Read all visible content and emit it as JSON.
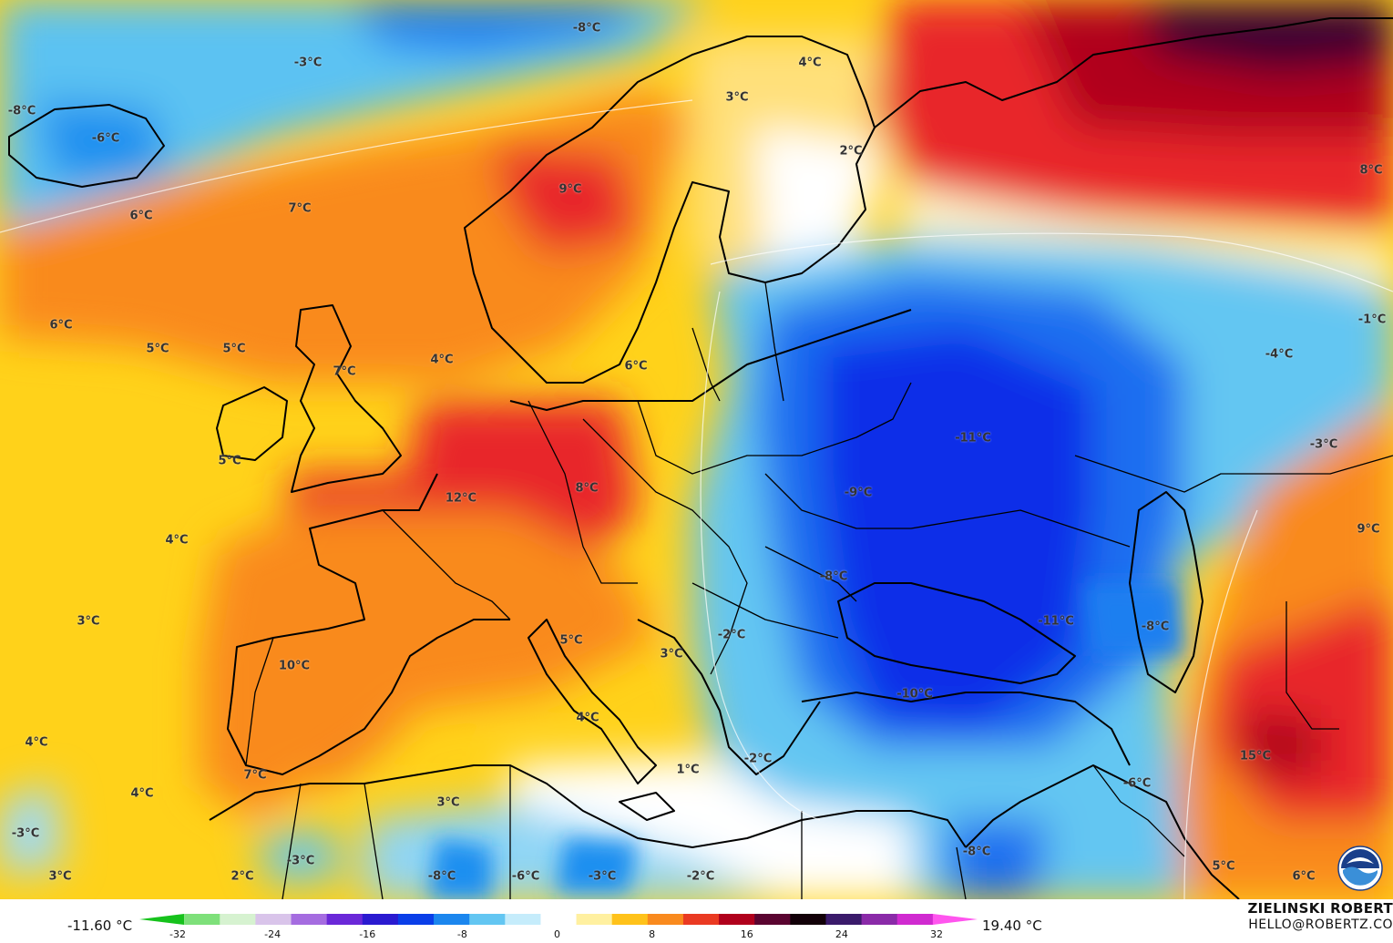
{
  "map": {
    "colors": {
      "deep_red": "#b0001c",
      "red": "#e8262a",
      "orange": "#f98a1e",
      "yellow": "#ffd21a",
      "pale": "#fff4c8",
      "white": "#ffffff",
      "light_blue": "#7fd3f5",
      "blue": "#1f8ff0",
      "deep_blue": "#0a2de8",
      "dark_purple": "#3a0533"
    },
    "labels": [
      {
        "name": "temp-label-n-atlantic-north",
        "text": "-8°C"
      },
      {
        "name": "temp-label-norwegian-sea",
        "text": "-3°C"
      },
      {
        "name": "temp-label-kola",
        "text": "4°C"
      },
      {
        "name": "temp-label-iceland-west",
        "text": "-8°C"
      },
      {
        "name": "temp-label-iceland",
        "text": "-6°C"
      },
      {
        "name": "temp-label-lapland",
        "text": "3°C"
      },
      {
        "name": "temp-label-finland",
        "text": "2°C"
      },
      {
        "name": "temp-label-ural-north",
        "text": "8°C"
      },
      {
        "name": "temp-label-norway",
        "text": "9°C"
      },
      {
        "name": "temp-label-atlantic-north",
        "text": "6°C"
      },
      {
        "name": "temp-label-faroe",
        "text": "7°C"
      },
      {
        "name": "temp-label-atlantic-west",
        "text": "6°C"
      },
      {
        "name": "temp-label-atlantic-mid",
        "text": "5°C"
      },
      {
        "name": "temp-label-scotland-west",
        "text": "5°C"
      },
      {
        "name": "temp-label-england",
        "text": "7°C"
      },
      {
        "name": "temp-label-north-sea",
        "text": "4°C"
      },
      {
        "name": "temp-label-baltic",
        "text": "6°C"
      },
      {
        "name": "temp-label-kazakh-north",
        "text": "-1°C"
      },
      {
        "name": "temp-label-kazakh",
        "text": "-4°C"
      },
      {
        "name": "temp-label-ireland",
        "text": "5°C"
      },
      {
        "name": "temp-label-russia",
        "text": "-11°C"
      },
      {
        "name": "temp-label-caspian-north",
        "text": "-3°C"
      },
      {
        "name": "temp-label-belgium",
        "text": "12°C"
      },
      {
        "name": "temp-label-germany",
        "text": "8°C"
      },
      {
        "name": "temp-label-ukraine",
        "text": "-9°C"
      },
      {
        "name": "temp-label-iran-north",
        "text": "9°C"
      },
      {
        "name": "temp-label-bay-of-biscay",
        "text": "4°C"
      },
      {
        "name": "temp-label-romania",
        "text": "-8°C"
      },
      {
        "name": "temp-label-atlantic-sw",
        "text": "3°C"
      },
      {
        "name": "temp-label-black-sea-east",
        "text": "-11°C"
      },
      {
        "name": "temp-label-caspian",
        "text": "-8°C"
      },
      {
        "name": "temp-label-balkans",
        "text": "-2°C"
      },
      {
        "name": "temp-label-italy-north",
        "text": "5°C"
      },
      {
        "name": "temp-label-spain",
        "text": "10°C"
      },
      {
        "name": "temp-label-adriatic",
        "text": "3°C"
      },
      {
        "name": "temp-label-turkey",
        "text": "-10°C"
      },
      {
        "name": "temp-label-tyrrhenian",
        "text": "4°C"
      },
      {
        "name": "temp-label-portugal-west",
        "text": "4°C"
      },
      {
        "name": "temp-label-iran",
        "text": "15°C"
      },
      {
        "name": "temp-label-sicily-south",
        "text": "1°C"
      },
      {
        "name": "temp-label-aegean",
        "text": "-2°C"
      },
      {
        "name": "temp-label-andalusia",
        "text": "7°C"
      },
      {
        "name": "temp-label-syria",
        "text": "-6°C"
      },
      {
        "name": "temp-label-morocco-west",
        "text": "4°C"
      },
      {
        "name": "temp-label-algeria",
        "text": "3°C"
      },
      {
        "name": "temp-label-canary",
        "text": "-3°C"
      },
      {
        "name": "temp-label-morocco-south",
        "text": "-3°C"
      },
      {
        "name": "temp-label-israel",
        "text": "-8°C"
      },
      {
        "name": "temp-label-sahara-west",
        "text": "3°C"
      },
      {
        "name": "temp-label-sahara",
        "text": "2°C"
      },
      {
        "name": "temp-label-libya-west",
        "text": "-8°C"
      },
      {
        "name": "temp-label-libya",
        "text": "-6°C"
      },
      {
        "name": "temp-label-libya-east",
        "text": "-3°C"
      },
      {
        "name": "temp-label-egypt-west",
        "text": "-2°C"
      },
      {
        "name": "temp-label-arabia",
        "text": "5°C"
      },
      {
        "name": "temp-label-persian-gulf",
        "text": "6°C"
      }
    ]
  },
  "legend": {
    "min_value": "-11.60 °C",
    "max_value": "19.40 °C",
    "ticks": [
      "-32",
      "-24",
      "-16",
      "-8",
      "0",
      "8",
      "16",
      "24",
      "32"
    ],
    "author": "ZIELINSKI ROBERT",
    "email": "HELLO@ROBERTZ.CO",
    "scale_colors": [
      "#16c21c",
      "#7ee07a",
      "#d6f2d0",
      "#d9c4ea",
      "#a56ce0",
      "#6a28d8",
      "#2a1ad0",
      "#0a3ee8",
      "#1b86ee",
      "#63c6f2",
      "#c5ecfb",
      "#ffffff",
      "#fff0a0",
      "#ffc21a",
      "#f98a1e",
      "#ea3a22",
      "#b0001c",
      "#5a0430",
      "#120008",
      "#3a1a6a",
      "#8a2aa8",
      "#d02ad0",
      "#ff55ee"
    ]
  }
}
